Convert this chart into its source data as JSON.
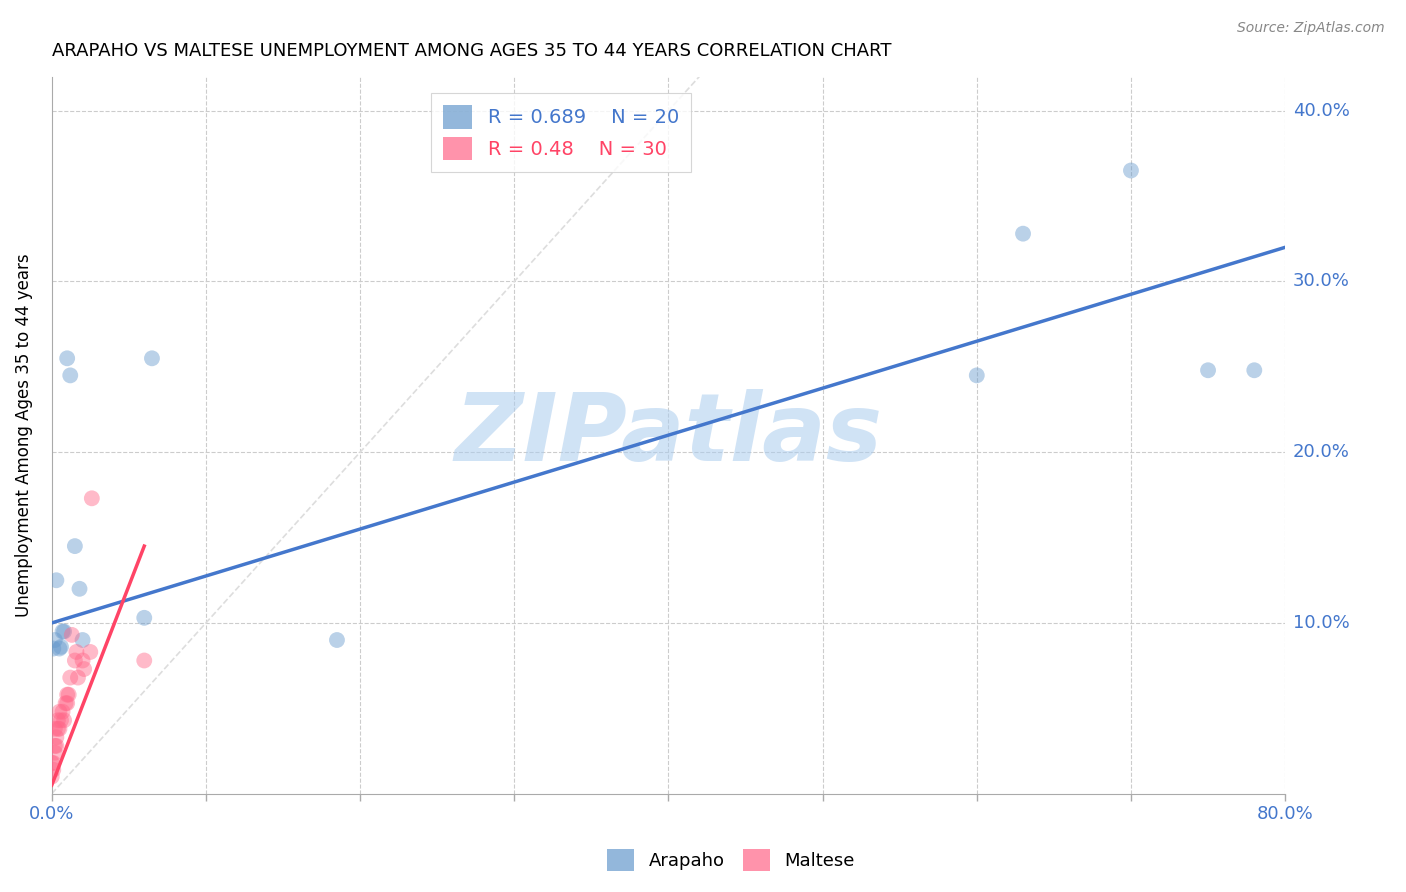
{
  "title": "ARAPAHO VS MALTESE UNEMPLOYMENT AMONG AGES 35 TO 44 YEARS CORRELATION CHART",
  "source": "Source: ZipAtlas.com",
  "ylabel_label": "Unemployment Among Ages 35 to 44 years",
  "legend_bottom": [
    "Arapaho",
    "Maltese"
  ],
  "arapaho_R": 0.689,
  "arapaho_N": 20,
  "maltese_R": 0.48,
  "maltese_N": 30,
  "arapaho_color": "#6699CC",
  "maltese_color": "#FF6688",
  "arapaho_line_color": "#4477CC",
  "maltese_line_color": "#FF4466",
  "diagonal_color": "#DDDDDD",
  "grid_color": "#CCCCCC",
  "tick_label_color": "#4477CC",
  "watermark": "ZIPatlas",
  "watermark_color": "#AACCEE",
  "xlim": [
    0.0,
    0.8
  ],
  "ylim": [
    0.0,
    0.42
  ],
  "xticks": [
    0.0,
    0.1,
    0.2,
    0.3,
    0.4,
    0.5,
    0.6,
    0.7,
    0.8
  ],
  "yticks": [
    0.0,
    0.1,
    0.2,
    0.3,
    0.4
  ],
  "arapaho_x": [
    0.001,
    0.002,
    0.003,
    0.005,
    0.006,
    0.007,
    0.008,
    0.01,
    0.012,
    0.015,
    0.018,
    0.02,
    0.06,
    0.065,
    0.185,
    0.6,
    0.63,
    0.7,
    0.75,
    0.78
  ],
  "arapaho_y": [
    0.085,
    0.09,
    0.125,
    0.085,
    0.086,
    0.095,
    0.095,
    0.255,
    0.245,
    0.145,
    0.12,
    0.09,
    0.103,
    0.255,
    0.09,
    0.245,
    0.328,
    0.365,
    0.248,
    0.248
  ],
  "maltese_x": [
    0.0,
    0.0,
    0.001,
    0.001,
    0.002,
    0.002,
    0.002,
    0.003,
    0.003,
    0.004,
    0.004,
    0.005,
    0.005,
    0.006,
    0.007,
    0.008,
    0.009,
    0.01,
    0.01,
    0.011,
    0.012,
    0.013,
    0.015,
    0.016,
    0.017,
    0.02,
    0.021,
    0.025,
    0.026,
    0.06
  ],
  "maltese_y": [
    0.01,
    0.018,
    0.014,
    0.018,
    0.028,
    0.024,
    0.038,
    0.033,
    0.028,
    0.038,
    0.043,
    0.038,
    0.048,
    0.043,
    0.048,
    0.043,
    0.053,
    0.053,
    0.058,
    0.058,
    0.068,
    0.093,
    0.078,
    0.083,
    0.068,
    0.078,
    0.073,
    0.083,
    0.173,
    0.078
  ],
  "arapaho_trend_x": [
    0.0,
    0.8
  ],
  "arapaho_trend_y": [
    0.1,
    0.32
  ],
  "maltese_trend_x": [
    0.0,
    0.06
  ],
  "maltese_trend_y": [
    0.005,
    0.145
  ]
}
